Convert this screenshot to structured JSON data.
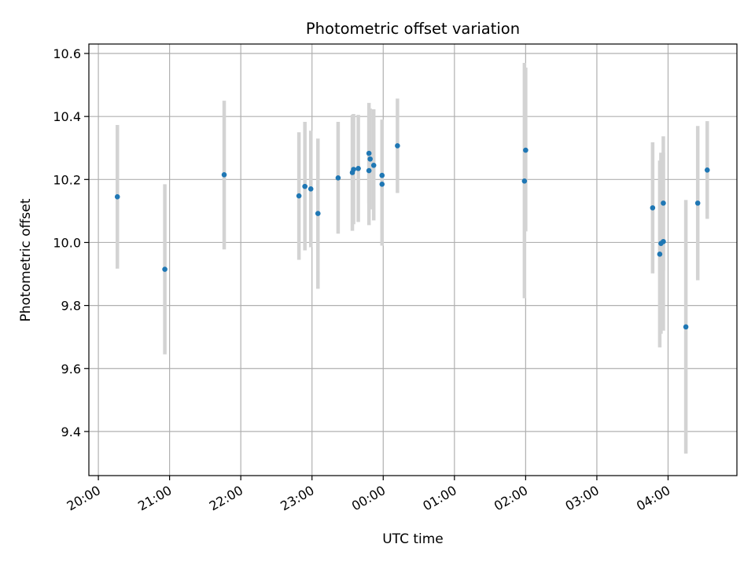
{
  "chart_data": {
    "type": "scatter",
    "title": "Photometric offset variation",
    "xlabel": "UTC time",
    "ylabel": "Photometric offset",
    "x_tick_labels": [
      "20:00",
      "21:00",
      "22:00",
      "23:00",
      "00:00",
      "01:00",
      "02:00",
      "03:00",
      "04:00"
    ],
    "y_tick_labels": [
      "9.4",
      "9.6",
      "9.8",
      "10.0",
      "10.2",
      "10.4",
      "10.6"
    ],
    "y_ticks": [
      9.4,
      9.6,
      9.8,
      10.0,
      10.2,
      10.4,
      10.6
    ],
    "xlim": [
      "19:52",
      "04:58"
    ],
    "ylim": [
      9.26,
      10.63
    ],
    "grid": true,
    "colors": {
      "point": "#1f77b4",
      "errorbar": "#d3d3d3",
      "grid": "#b0b0b0"
    },
    "points": [
      {
        "x": "20:16",
        "y": 10.145,
        "low": 9.917,
        "high": 10.373
      },
      {
        "x": "20:56",
        "y": 9.915,
        "low": 9.645,
        "high": 10.185
      },
      {
        "x": "21:46",
        "y": 10.215,
        "low": 9.978,
        "high": 10.45
      },
      {
        "x": "22:49",
        "y": 10.148,
        "low": 9.945,
        "high": 10.35
      },
      {
        "x": "22:54",
        "y": 10.178,
        "low": 9.975,
        "high": 10.383
      },
      {
        "x": "22:59",
        "y": 10.17,
        "low": 9.985,
        "high": 10.355
      },
      {
        "x": "23:05",
        "y": 10.092,
        "low": 9.853,
        "high": 10.33
      },
      {
        "x": "23:22",
        "y": 10.205,
        "low": 10.028,
        "high": 10.383
      },
      {
        "x": "23:34",
        "y": 10.222,
        "low": 10.037,
        "high": 10.405
      },
      {
        "x": "23:35",
        "y": 10.232,
        "low": 10.058,
        "high": 10.408
      },
      {
        "x": "23:39",
        "y": 10.235,
        "low": 10.065,
        "high": 10.405
      },
      {
        "x": "23:48",
        "y": 10.228,
        "low": 10.055,
        "high": 10.4
      },
      {
        "x": "23:48",
        "y": 10.283,
        "low": 10.125,
        "high": 10.443
      },
      {
        "x": "23:49",
        "y": 10.265,
        "low": 10.105,
        "high": 10.425
      },
      {
        "x": "23:52",
        "y": 10.245,
        "low": 10.07,
        "high": 10.423
      },
      {
        "x": "23:59",
        "y": 10.213,
        "low": 10.03,
        "high": 10.39
      },
      {
        "x": "23:59",
        "y": 10.185,
        "low": 9.99,
        "high": 10.385
      },
      {
        "x": "00:12",
        "y": 10.307,
        "low": 10.157,
        "high": 10.457
      },
      {
        "x": "01:59",
        "y": 10.195,
        "low": 9.823,
        "high": 10.57
      },
      {
        "x": "02:00",
        "y": 10.293,
        "low": 10.035,
        "high": 10.555
      },
      {
        "x": "03:47",
        "y": 10.11,
        "low": 9.902,
        "high": 10.318
      },
      {
        "x": "03:53",
        "y": 9.963,
        "low": 9.667,
        "high": 10.26
      },
      {
        "x": "03:54",
        "y": 9.997,
        "low": 9.71,
        "high": 10.285
      },
      {
        "x": "03:56",
        "y": 10.003,
        "low": 9.72,
        "high": 10.285
      },
      {
        "x": "03:56",
        "y": 10.125,
        "low": 9.912,
        "high": 10.337
      },
      {
        "x": "04:15",
        "y": 9.732,
        "low": 9.33,
        "high": 10.135
      },
      {
        "x": "04:25",
        "y": 10.125,
        "low": 9.88,
        "high": 10.37
      },
      {
        "x": "04:33",
        "y": 10.23,
        "low": 10.075,
        "high": 10.385
      }
    ]
  }
}
